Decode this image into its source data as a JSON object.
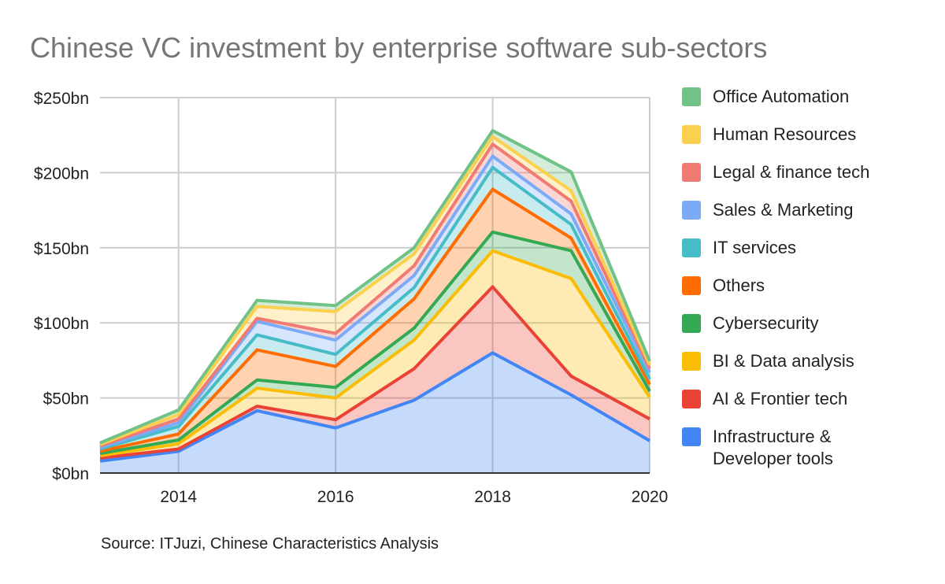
{
  "title": "Chinese VC investment by enterprise software sub-sectors",
  "source": "Source: ITJuzi, Chinese Characteristics Analysis",
  "chart_data": {
    "type": "area",
    "stacked": true,
    "title": "Chinese VC investment by enterprise software sub-sectors",
    "xlabel": "",
    "ylabel": "",
    "x": [
      2013,
      2014,
      2015,
      2016,
      2017,
      2018,
      2019,
      2020
    ],
    "xlim": [
      2013,
      2020
    ],
    "xticks": [
      2014,
      2016,
      2018,
      2020
    ],
    "ylim": [
      0,
      250
    ],
    "yticks": [
      0,
      50,
      100,
      150,
      200,
      250
    ],
    "ytick_labels": [
      "$0bn",
      "$50bn",
      "$100bn",
      "$150bn",
      "$200bn",
      "$250bn"
    ],
    "grid": true,
    "legend_position": "right",
    "series": [
      {
        "name": "Infrastructure & Developer tools",
        "color": "#4285F4",
        "values": [
          8,
          14.5,
          41.5,
          30,
          48.5,
          80,
          52,
          21.5
        ]
      },
      {
        "name": "AI & Frontier tech",
        "color": "#EA4335",
        "values": [
          2,
          1.5,
          3,
          5.5,
          21,
          44,
          12.5,
          14.5
        ]
      },
      {
        "name": "BI & Data analysis",
        "color": "#FBBC04",
        "values": [
          1.5,
          3.5,
          12,
          14.5,
          19,
          24,
          65,
          14.5
        ]
      },
      {
        "name": "Cybersecurity",
        "color": "#34A853",
        "values": [
          1.5,
          2.5,
          5.5,
          7,
          8,
          12.5,
          18.5,
          4
        ]
      },
      {
        "name": "Others",
        "color": "#FF6D01",
        "values": [
          1.5,
          4,
          20,
          14,
          19.5,
          28.5,
          8.5,
          4.5
        ]
      },
      {
        "name": "IT services",
        "color": "#46BDC6",
        "values": [
          1.5,
          5,
          10,
          8,
          7.5,
          14.5,
          9,
          3.5
        ]
      },
      {
        "name": "Sales & Marketing",
        "color": "#7BAAF7",
        "values": [
          1,
          2.5,
          9,
          9.5,
          8,
          7.5,
          7,
          4.5
        ]
      },
      {
        "name": "Legal & finance tech",
        "color": "#F07B72",
        "values": [
          1,
          2.5,
          2,
          4.5,
          6.5,
          8,
          8.5,
          2.5
        ]
      },
      {
        "name": "Human Resources",
        "color": "#FCD04F",
        "values": [
          1,
          3,
          8,
          14.5,
          8,
          5,
          7,
          2.5
        ]
      },
      {
        "name": "Office Automation",
        "color": "#71C287",
        "values": [
          1,
          3,
          4,
          4,
          4,
          4,
          12.5,
          2.5
        ]
      }
    ],
    "legend_lines": [
      [
        "Office Automation"
      ],
      [
        "Human Resources"
      ],
      [
        "Legal & finance tech"
      ],
      [
        "Sales & Marketing"
      ],
      [
        "IT services"
      ],
      [
        "Others"
      ],
      [
        "Cybersecurity"
      ],
      [
        "BI & Data analysis"
      ],
      [
        "AI & Frontier tech"
      ],
      [
        "Infrastructure &",
        "Developer tools"
      ]
    ]
  }
}
